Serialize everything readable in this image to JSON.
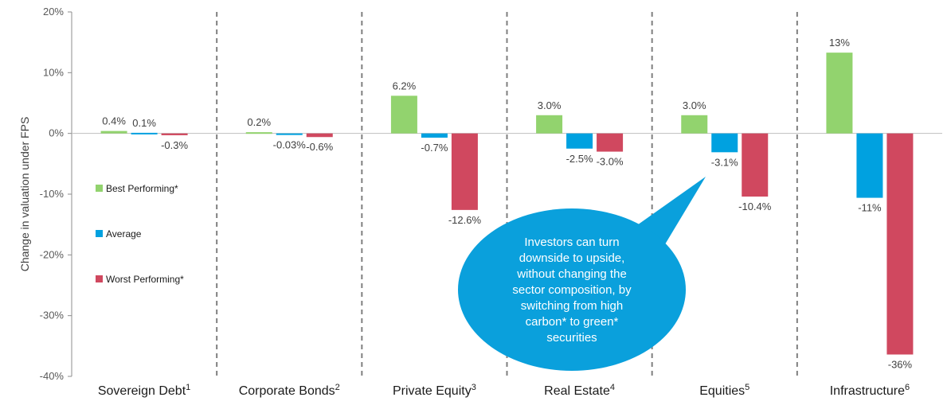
{
  "chart_data": {
    "type": "bar",
    "ylabel": "Change in valuation under FPS",
    "ylim": [
      -40,
      20
    ],
    "y_ticks": [
      "20%",
      "10%",
      "0%",
      "-10%",
      "-20%",
      "-30%",
      "-40%"
    ],
    "y_tick_values": [
      20,
      10,
      0,
      -10,
      -20,
      -30,
      -40
    ],
    "categories": [
      {
        "label": "Sovereign Debt",
        "sup": "1"
      },
      {
        "label": "Corporate Bonds",
        "sup": "2"
      },
      {
        "label": "Private Equity",
        "sup": "3"
      },
      {
        "label": "Real Estate",
        "sup": "4"
      },
      {
        "label": "Equities",
        "sup": "5"
      },
      {
        "label": "Infrastructure",
        "sup": "6"
      }
    ],
    "series": [
      {
        "name": "Best Performing*",
        "color": "#92d36e",
        "values": [
          0.4,
          0.2,
          6.2,
          3.0,
          3.0,
          13.3
        ],
        "labels": [
          "0.4%",
          "0.2%",
          "6.2%",
          "3.0%",
          "3.0%",
          "13%"
        ]
      },
      {
        "name": "Average",
        "color": "#00a1e0",
        "values": [
          0.1,
          -0.03,
          -0.7,
          -2.5,
          -3.1,
          -10.6
        ],
        "labels": [
          "0.1%",
          "-0.03%",
          "-0.7%",
          "-2.5%",
          "-3.1%",
          "-11%"
        ]
      },
      {
        "name": "Worst Performing*",
        "color": "#d0485f",
        "values": [
          -0.3,
          -0.6,
          -12.6,
          -3.0,
          -10.4,
          -36.4
        ],
        "labels": [
          "-0.3%",
          "-0.6%",
          "-12.6%",
          "-3.0%",
          "-10.4%",
          "-36%"
        ]
      }
    ],
    "legend_position": "left",
    "grid": false,
    "separator_style": "dashed",
    "callout": {
      "lines": [
        "Investors can turn",
        "downside to upside,",
        "without changing the",
        "sector composition, by",
        "switching from high",
        "carbon* to green*",
        "securities"
      ],
      "color": "#0aa0dc"
    }
  }
}
